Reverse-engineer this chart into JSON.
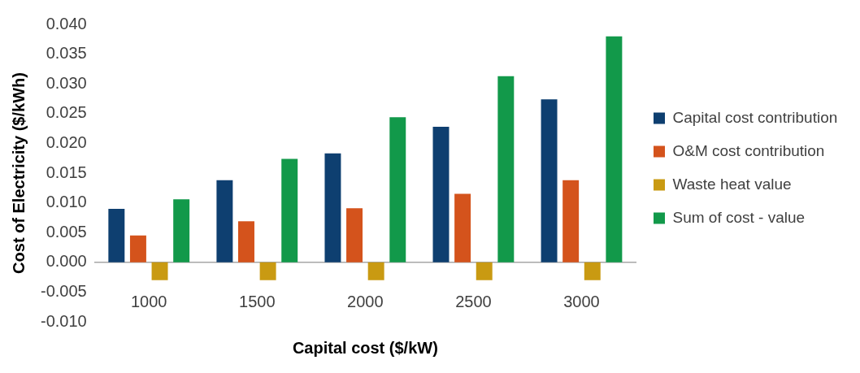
{
  "chart_data": {
    "type": "bar",
    "xlabel": "Capital cost ($/kW)",
    "ylabel": "Cost of Electricity ($/kWh)",
    "categories": [
      "1000",
      "1500",
      "2000",
      "2500",
      "3000"
    ],
    "series": [
      {
        "name": "Capital cost contribution",
        "color": "#0e3f70",
        "values": [
          0.009,
          0.0138,
          0.0183,
          0.0228,
          0.0274
        ]
      },
      {
        "name": "O&M cost contribution",
        "color": "#d4531c",
        "values": [
          0.0045,
          0.0069,
          0.0091,
          0.0115,
          0.0138
        ]
      },
      {
        "name": "Waste heat value",
        "color": "#c99a12",
        "values": [
          -0.003,
          -0.003,
          -0.003,
          -0.003,
          -0.003
        ]
      },
      {
        "name": "Sum of cost - value",
        "color": "#12994a",
        "values": [
          0.0106,
          0.0174,
          0.0244,
          0.0313,
          0.038
        ]
      }
    ],
    "ylim": [
      -0.01,
      0.04
    ],
    "yticks": [
      {
        "value": -0.01,
        "label": "-0.010"
      },
      {
        "value": -0.005,
        "label": "-0.005"
      },
      {
        "value": 0,
        "label": "0.000"
      },
      {
        "value": 0.005,
        "label": "0.005"
      },
      {
        "value": 0.01,
        "label": "0.010"
      },
      {
        "value": 0.015,
        "label": "0.015"
      },
      {
        "value": 0.02,
        "label": "0.020"
      },
      {
        "value": 0.025,
        "label": "0.025"
      },
      {
        "value": 0.03,
        "label": "0.030"
      },
      {
        "value": 0.035,
        "label": "0.035"
      },
      {
        "value": 0.04,
        "label": "0.040"
      }
    ],
    "grid": false,
    "legend": "right"
  }
}
